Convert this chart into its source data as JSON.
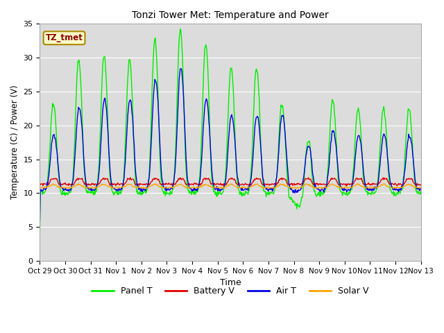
{
  "title": "Tonzi Tower Met: Temperature and Power",
  "xlabel": "Time",
  "ylabel": "Temperature (C) / Power (V)",
  "ylim": [
    0,
    35
  ],
  "background_color": "#ffffff",
  "plot_bg_color": "#dcdcdc",
  "legend_labels": [
    "Panel T",
    "Battery V",
    "Air T",
    "Solar V"
  ],
  "legend_colors": [
    "#00ee00",
    "#dd0000",
    "#0000dd",
    "#ffa500"
  ],
  "annotation_text": "TZ_tmet",
  "annotation_color": "#880000",
  "annotation_bg": "#ffffcc",
  "annotation_border": "#aa8800",
  "x_tick_labels": [
    "Oct 29",
    "Oct 30",
    "Oct 31",
    "Nov 1",
    "Nov 2",
    "Nov 3",
    "Nov 4",
    "Nov 5",
    "Nov 6",
    "Nov 7",
    "Nov 8",
    "Nov 9",
    "Nov 10",
    "Nov 11",
    "Nov 12",
    "Nov 13"
  ],
  "grid_color": "#ffffff",
  "line_width": 1.0,
  "n_days": 15
}
